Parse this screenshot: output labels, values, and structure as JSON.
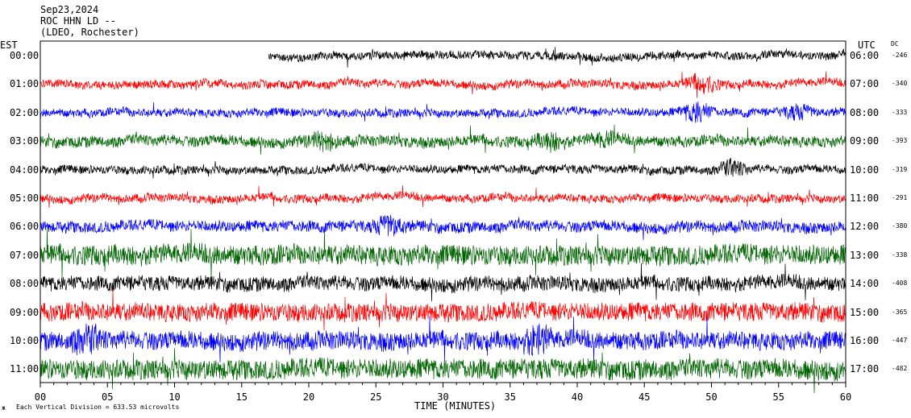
{
  "header": {
    "date": "Sep23,2024",
    "station": "ROC HHN LD --",
    "network": "(LDEO, Rochester)"
  },
  "axis_labels": {
    "left": "EST",
    "right": "UTC",
    "dc": "DC",
    "x": "TIME (MINUTES)"
  },
  "footer": {
    "mark": "ж",
    "scale_note": "Each Vertical Division = 633.53 microvolts"
  },
  "colors": {
    "black": "#000000",
    "red": "#ff0000",
    "blue": "#0000ff",
    "green": "#006400"
  },
  "chart_data": {
    "type": "line",
    "title": "ROC HHN LD --",
    "xlabel": "TIME (MINUTES)",
    "xlim": [
      0,
      60
    ],
    "x_ticks": [
      "00",
      "05",
      "10",
      "15",
      "20",
      "25",
      "30",
      "35",
      "40",
      "45",
      "50",
      "55",
      "60"
    ],
    "series": [
      {
        "row": 0,
        "est": "00:00",
        "utc": "06:00",
        "dc": "-246",
        "color": "black",
        "amp": 9,
        "start_min": 17,
        "events": []
      },
      {
        "row": 1,
        "est": "01:00",
        "utc": "07:00",
        "dc": "-340",
        "color": "red",
        "amp": 9,
        "start_min": 0,
        "events": [
          {
            "min": 49.3,
            "size": 18
          }
        ]
      },
      {
        "row": 2,
        "est": "02:00",
        "utc": "08:00",
        "dc": "-333",
        "color": "blue",
        "amp": 9,
        "start_min": 0,
        "events": [
          {
            "min": 48.9,
            "size": 20
          },
          {
            "min": 56.5,
            "size": 12
          }
        ]
      },
      {
        "row": 3,
        "est": "03:00",
        "utc": "09:00",
        "dc": "-393",
        "color": "green",
        "amp": 12,
        "start_min": 0,
        "events": [
          {
            "min": 21.0,
            "size": 14
          },
          {
            "min": 38.0,
            "size": 14
          },
          {
            "min": 42.0,
            "size": 10
          }
        ]
      },
      {
        "row": 4,
        "est": "04:00",
        "utc": "10:00",
        "dc": "-319",
        "color": "black",
        "amp": 9,
        "start_min": 0,
        "events": [
          {
            "min": 51.5,
            "size": 16
          }
        ]
      },
      {
        "row": 5,
        "est": "05:00",
        "utc": "11:00",
        "dc": "-291",
        "color": "red",
        "amp": 9,
        "start_min": 0,
        "events": []
      },
      {
        "row": 6,
        "est": "06:00",
        "utc": "12:00",
        "dc": "-380",
        "color": "blue",
        "amp": 12,
        "start_min": 0,
        "events": [
          {
            "min": 26.0,
            "size": 18
          }
        ]
      },
      {
        "row": 7,
        "est": "07:00",
        "utc": "13:00",
        "dc": "-338",
        "color": "green",
        "amp": 22,
        "start_min": 0,
        "events": []
      },
      {
        "row": 8,
        "est": "08:00",
        "utc": "14:00",
        "dc": "-408",
        "color": "black",
        "amp": 16,
        "start_min": 0,
        "events": []
      },
      {
        "row": 9,
        "est": "09:00",
        "utc": "15:00",
        "dc": "-365",
        "color": "red",
        "amp": 20,
        "start_min": 0,
        "events": []
      },
      {
        "row": 10,
        "est": "10:00",
        "utc": "16:00",
        "dc": "-447",
        "color": "blue",
        "amp": 20,
        "start_min": 0,
        "events": [
          {
            "min": 3.5,
            "size": 22
          },
          {
            "min": 37.0,
            "size": 22
          }
        ]
      },
      {
        "row": 11,
        "est": "11:00",
        "utc": "17:00",
        "dc": "-482",
        "color": "green",
        "amp": 22,
        "start_min": 0,
        "events": []
      }
    ]
  }
}
